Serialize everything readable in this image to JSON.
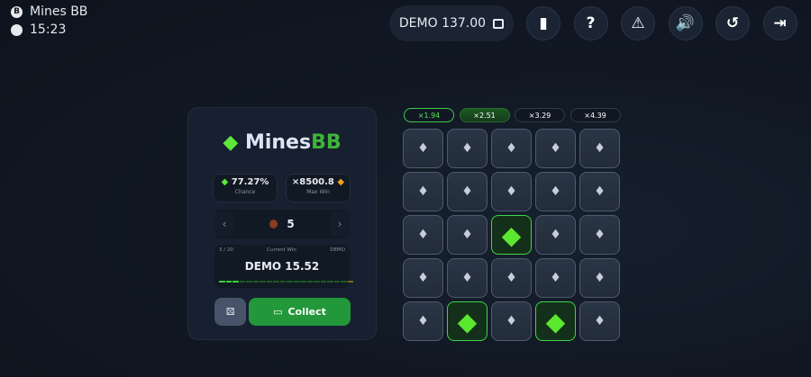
{
  "status": {
    "app": "Mines BB",
    "app_icon_letter": "B",
    "time": "15:23"
  },
  "balance": {
    "label": "DEMO 137.00",
    "icon": "wallet-icon"
  },
  "toolbar": [
    {
      "name": "rules-book-icon",
      "glyph": "▮"
    },
    {
      "name": "help-icon",
      "glyph": "?"
    },
    {
      "name": "fairness-warning-icon",
      "glyph": "⚠"
    },
    {
      "name": "sound-icon",
      "glyph": "🔊"
    },
    {
      "name": "history-icon",
      "glyph": "↺"
    },
    {
      "name": "exit-icon",
      "glyph": "⇥"
    }
  ],
  "logo": {
    "text1": "Mines",
    "text2": "BB"
  },
  "stats": {
    "chance": "77.27%",
    "chance_label": "Chance",
    "max_win": "×8500.8",
    "max_win_label": "Max Win"
  },
  "mines": {
    "count": "5",
    "prev": "‹",
    "next": "›"
  },
  "win": {
    "step": "3 / 20",
    "label": "Current Win",
    "currency": "DEMO",
    "amount": "DEMO 15.52",
    "progress_steps": 20,
    "progress_done": 3
  },
  "buttons": {
    "collect": "Collect",
    "auto_icon": "dice-icon"
  },
  "multipliers": [
    {
      "v": "×1.94",
      "state": "done"
    },
    {
      "v": "×2.51",
      "state": "current"
    },
    {
      "v": "×3.29",
      "state": "next"
    },
    {
      "v": "×4.39",
      "state": "next"
    }
  ],
  "grid": {
    "rows": 5,
    "cols": 5,
    "revealed_gems": [
      [
        2,
        2
      ],
      [
        4,
        1
      ],
      [
        4,
        3
      ]
    ]
  },
  "colors": {
    "accent": "#22983a",
    "gem": "#5ae82e"
  }
}
